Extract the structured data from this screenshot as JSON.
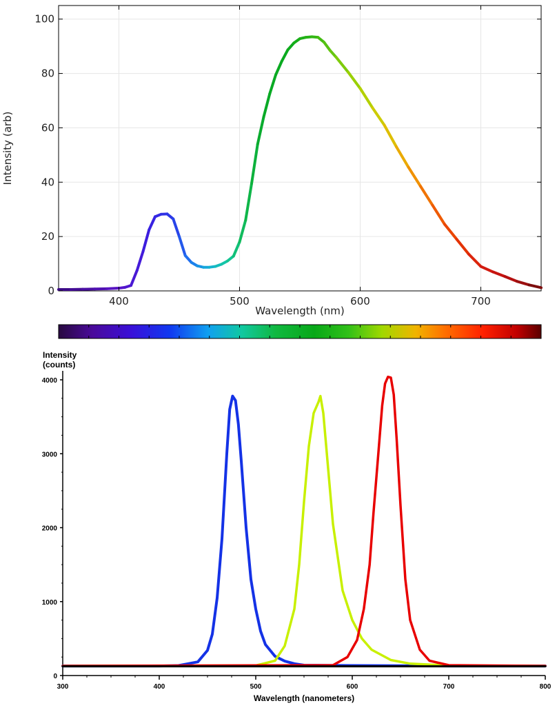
{
  "chart_data": [
    {
      "type": "line",
      "title": "",
      "xlabel": "Wavelength (nm)",
      "ylabel": "Intensity (arb)",
      "xlim": [
        350,
        750
      ],
      "ylim": [
        0,
        105
      ],
      "x_ticks": [
        400,
        500,
        600,
        700
      ],
      "y_ticks": [
        0,
        20,
        40,
        60,
        80,
        100
      ],
      "grid": true,
      "line_coloring": "spectral (wavelength-mapped color)",
      "series": [
        {
          "x": [
            350,
            360,
            370,
            380,
            390,
            400,
            405,
            410,
            415,
            420,
            425,
            430,
            435,
            440,
            445,
            450,
            455,
            460,
            465,
            470,
            475,
            480,
            485,
            490,
            495,
            500,
            505,
            510,
            515,
            520,
            525,
            530,
            535,
            540,
            545,
            550,
            555,
            560,
            565,
            570,
            575,
            580,
            590,
            600,
            610,
            620,
            630,
            640,
            650,
            660,
            670,
            680,
            690,
            700,
            710,
            720,
            730,
            740,
            750
          ],
          "y": [
            0.5,
            0.5,
            0.6,
            0.7,
            0.8,
            1.0,
            1.3,
            2.0,
            7.5,
            14.5,
            22.5,
            27.3,
            28.2,
            28.3,
            26.5,
            20.0,
            13.0,
            10.5,
            9.2,
            8.7,
            8.7,
            9.0,
            9.8,
            11.0,
            12.8,
            18.0,
            26.0,
            39.5,
            54.0,
            64.0,
            72.5,
            79.5,
            84.5,
            88.7,
            91.2,
            92.8,
            93.3,
            93.5,
            93.3,
            91.5,
            88.5,
            86.0,
            80.5,
            74.5,
            67.5,
            61.0,
            53.0,
            45.5,
            38.5,
            31.5,
            24.5,
            19.0,
            13.5,
            9.0,
            7.0,
            5.3,
            3.5,
            2.2,
            1.2
          ]
        }
      ]
    },
    {
      "type": "line",
      "title": "",
      "xlabel": "Wavelength (nanometers)",
      "ylabel_lines": [
        "Intensity",
        "(counts)"
      ],
      "xlim": [
        300,
        800
      ],
      "ylim": [
        0,
        4100
      ],
      "x_ticks": [
        300,
        400,
        500,
        600,
        700,
        800
      ],
      "y_ticks": [
        0,
        1000,
        2000,
        3000,
        4000
      ],
      "grid": false,
      "series": [
        {
          "color": "#1432e6",
          "x": [
            300,
            400,
            420,
            440,
            450,
            455,
            460,
            465,
            470,
            473,
            476,
            479,
            482,
            485,
            490,
            495,
            500,
            505,
            510,
            520,
            530,
            540,
            550,
            600,
            700,
            800
          ],
          "y": [
            130,
            130,
            135,
            185,
            340,
            560,
            1050,
            1850,
            3000,
            3600,
            3780,
            3720,
            3400,
            2900,
            2000,
            1300,
            900,
            600,
            420,
            260,
            195,
            160,
            140,
            135,
            130,
            130
          ]
        },
        {
          "color": "#c8f000",
          "x": [
            300,
            500,
            520,
            530,
            540,
            545,
            550,
            555,
            560,
            565,
            567,
            570,
            575,
            580,
            585,
            590,
            600,
            610,
            620,
            640,
            660,
            700,
            800
          ],
          "y": [
            130,
            135,
            200,
            400,
            900,
            1500,
            2350,
            3100,
            3550,
            3700,
            3780,
            3550,
            2800,
            2050,
            1600,
            1150,
            750,
            500,
            350,
            210,
            160,
            135,
            130
          ]
        },
        {
          "color": "#e80000",
          "x": [
            300,
            580,
            595,
            605,
            612,
            618,
            622,
            627,
            631,
            634,
            637,
            640,
            643,
            646,
            650,
            655,
            660,
            670,
            680,
            700,
            800
          ],
          "y": [
            130,
            140,
            250,
            480,
            900,
            1500,
            2200,
            3000,
            3650,
            3950,
            4040,
            4030,
            3800,
            3200,
            2300,
            1300,
            750,
            350,
            200,
            140,
            130
          ]
        },
        {
          "color": "#000000",
          "x": [
            300,
            800
          ],
          "y": [
            125,
            125
          ]
        }
      ]
    }
  ]
}
